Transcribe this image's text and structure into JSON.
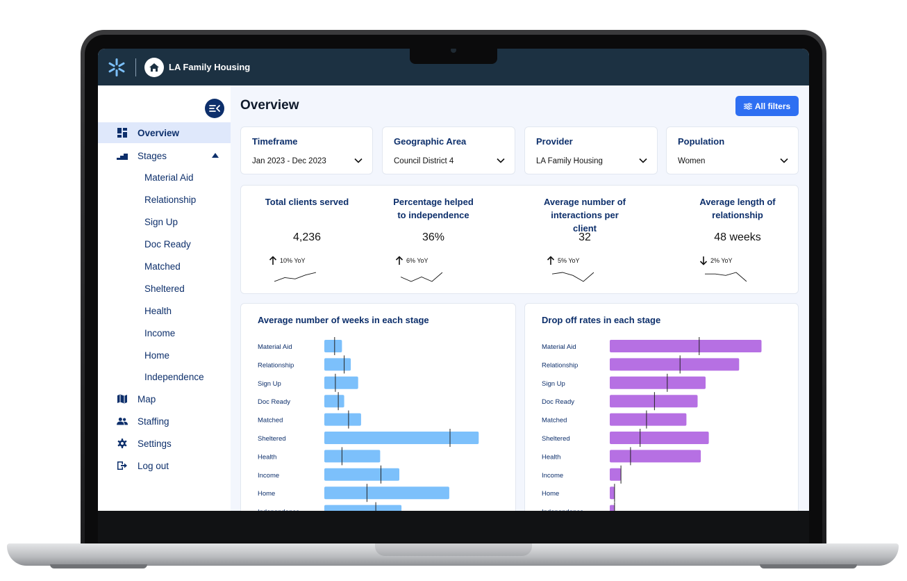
{
  "topbar": {
    "org_name": "LA Family Housing"
  },
  "sidebar": {
    "overview": "Overview",
    "stages": "Stages",
    "stage_items": [
      "Material Aid",
      "Relationship",
      "Sign Up",
      "Doc Ready",
      "Matched",
      "Sheltered",
      "Health",
      "Income",
      "Home",
      "Independence"
    ],
    "map": "Map",
    "staffing": "Staffing",
    "settings": "Settings",
    "logout": "Log out"
  },
  "main": {
    "title": "Overview",
    "filters_button": "All filters",
    "filters": [
      {
        "title": "Timeframe",
        "value": "Jan 2023 - Dec 2023"
      },
      {
        "title": "Geographic Area",
        "value": "Council District 4"
      },
      {
        "title": "Provider",
        "value": "LA Family Housing"
      },
      {
        "title": "Population",
        "value": "Women"
      }
    ],
    "kpis": [
      {
        "label": "Total clients served",
        "value": "4,236",
        "change": "10% YoY",
        "direction": "up",
        "spark": [
          3,
          6,
          5,
          8,
          10
        ]
      },
      {
        "label": "Percentage helped to independence",
        "value": "36%",
        "change": "6% YoY",
        "direction": "up",
        "spark": [
          6,
          5,
          6,
          5,
          7
        ]
      },
      {
        "label": "Average number of interactions per client",
        "value": "32",
        "change": "5% YoY",
        "direction": "up",
        "spark": [
          8,
          9,
          7,
          3,
          9
        ]
      },
      {
        "label": "Average length of relationship",
        "value": "48 weeks",
        "change": "2% YoY",
        "direction": "down",
        "spark": [
          7,
          7,
          6,
          8,
          2
        ]
      }
    ]
  },
  "colors": {
    "blue_bar": "#7cc0fb",
    "purple_bar": "#b670e3",
    "navy": "#0d2f6b",
    "accent": "#2e6ff2"
  },
  "chart_data": [
    {
      "type": "bar",
      "orientation": "horizontal",
      "title": "Average number of weeks in each stage",
      "categories": [
        "Material Aid",
        "Relationship",
        "Sign Up",
        "Doc Ready",
        "Matched",
        "Sheltered",
        "Health",
        "Income",
        "Home",
        "Independence"
      ],
      "values": [
        2.4,
        3.6,
        4.6,
        2.7,
        5.0,
        21.0,
        7.6,
        10.2,
        17.0,
        10.5
      ],
      "markers": [
        1.4,
        2.7,
        1.5,
        1.9,
        3.3,
        17.1,
        2.4,
        7.7,
        5.8,
        7.0
      ],
      "xlim": [
        0,
        24
      ]
    },
    {
      "type": "bar",
      "orientation": "horizontal",
      "title": "Drop off rates in each stage",
      "categories": [
        "Material Aid",
        "Relationship",
        "Sign Up",
        "Doc Ready",
        "Matched",
        "Sheltered",
        "Health",
        "Income",
        "Home",
        "Independence"
      ],
      "values": [
        95,
        81,
        60,
        55,
        48,
        62,
        57,
        7,
        3,
        3
      ],
      "markers": [
        56,
        44,
        36,
        28,
        23,
        19,
        13,
        7,
        3,
        3
      ],
      "xlim": [
        0,
        100
      ]
    }
  ]
}
